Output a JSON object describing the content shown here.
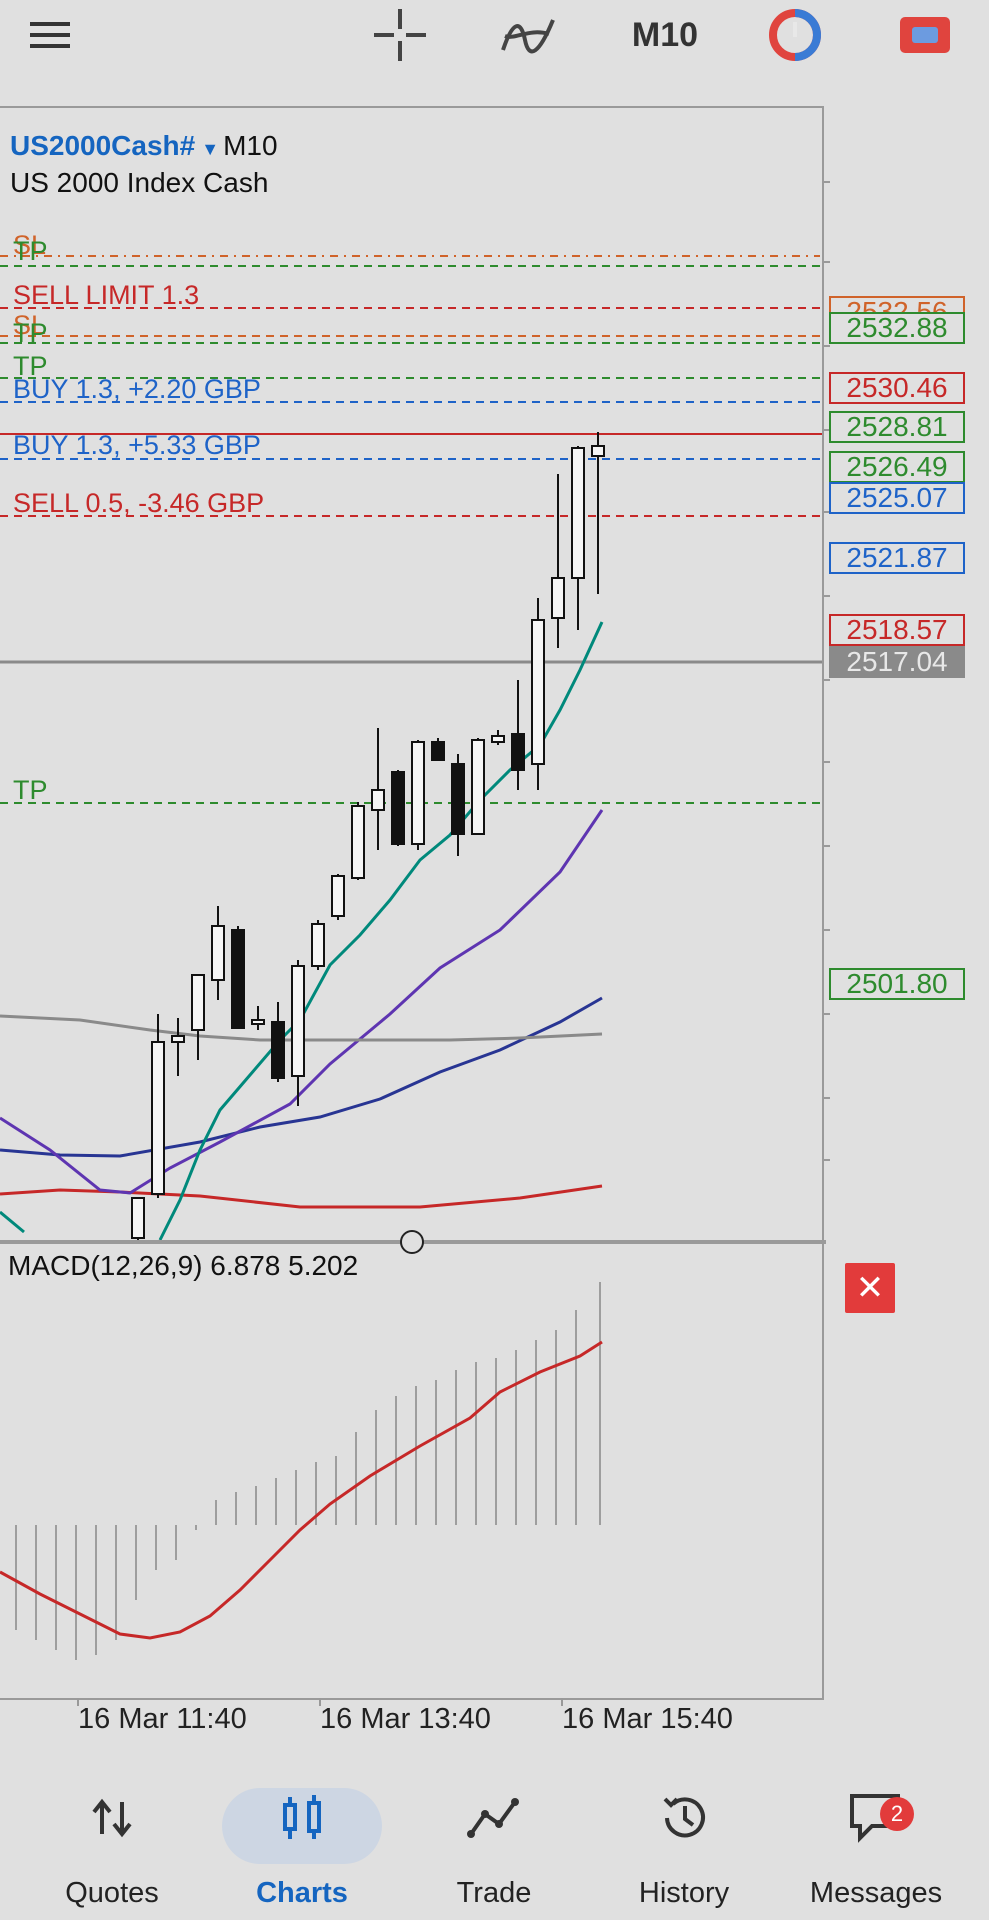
{
  "toolbar": {
    "timeframe": "M10"
  },
  "chart": {
    "symbol": "US2000Cash#",
    "symbol_timeframe": "M10",
    "description": "US 2000 Index Cash",
    "current_price": "2517.04",
    "levels": [
      {
        "label": "SL",
        "price": "2532.56",
        "color": "#d0632a"
      },
      {
        "label": "TP",
        "price": "2532.88",
        "color": "#2e8b2e"
      },
      {
        "label": "SELL LIMIT 1.3",
        "price": "2530.46",
        "color": "#c62828"
      },
      {
        "label": "SL",
        "price": "",
        "color": "#d0632a"
      },
      {
        "label": "TP",
        "price": "2528.81",
        "color": "#2e8b2e"
      },
      {
        "label": "TP",
        "price": "2526.49",
        "color": "#2e8b2e"
      },
      {
        "label": "BUY 1.3,  +2.20 GBP",
        "price": "2525.07",
        "color": "#1e63c8"
      },
      {
        "label": "BUY 1.3,  +5.33 GBP",
        "price": "2521.87",
        "color": "#1e63c8"
      },
      {
        "label": "SELL 0.5,  -3.46 GBP",
        "price": "2518.57",
        "color": "#c62828"
      },
      {
        "label": "TP",
        "price": "2501.80",
        "color": "#2e8b2e"
      }
    ],
    "macd_label": "MACD(12,26,9) 6.878 5.202",
    "close_icon": "close-icon",
    "x_labels": [
      "16 Mar 11:40",
      "16 Mar 13:40",
      "16 Mar 15:40"
    ]
  },
  "nav": {
    "items": [
      {
        "label": "Quotes",
        "icon": "quotes-arrows-icon"
      },
      {
        "label": "Charts",
        "icon": "candles-icon"
      },
      {
        "label": "Trade",
        "icon": "trade-line-icon"
      },
      {
        "label": "History",
        "icon": "history-icon"
      },
      {
        "label": "Messages",
        "icon": "messages-icon"
      }
    ],
    "messages_badge": "2"
  }
}
